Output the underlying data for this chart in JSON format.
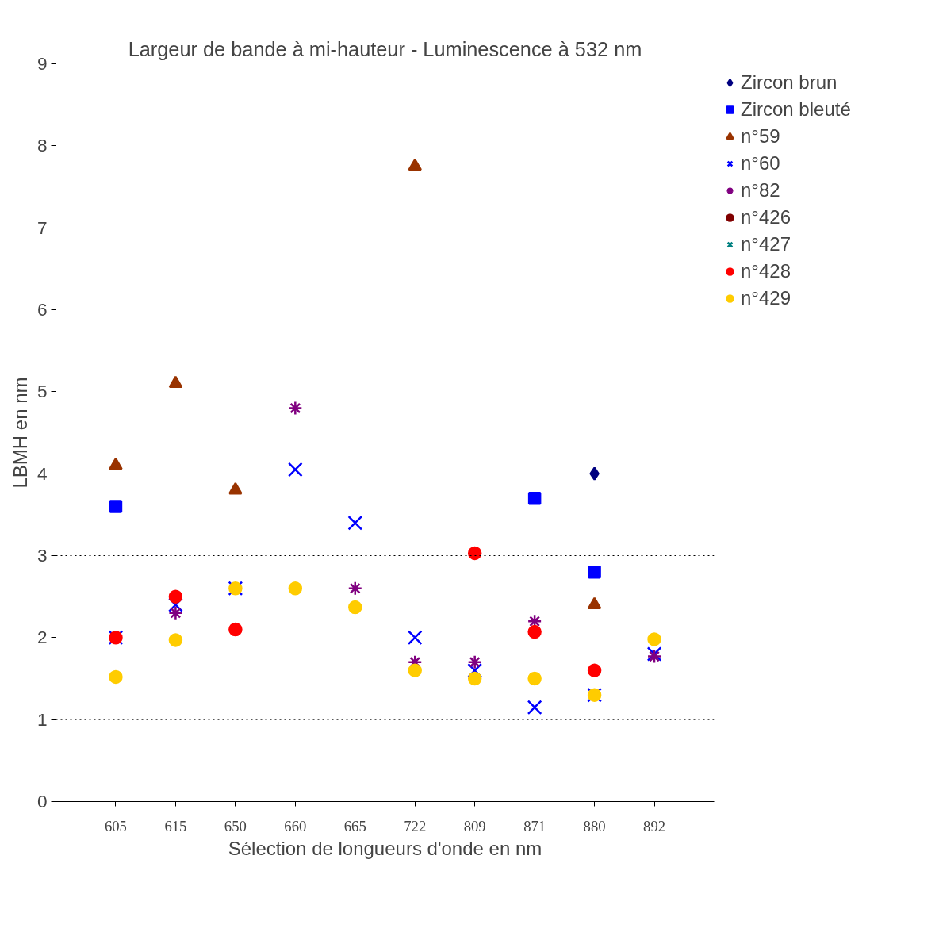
{
  "chart_data": {
    "type": "scatter",
    "title": "Largeur de bande à mi-hauteur - Luminescence à 532 nm",
    "xlabel": "Sélection de longueurs d'onde en nm",
    "ylabel": "LBMH en nm",
    "categories": [
      "605",
      "615",
      "650",
      "660",
      "665",
      "722",
      "809",
      "871",
      "880",
      "892"
    ],
    "ylim": [
      0,
      9
    ],
    "yticks": [
      0,
      1,
      2,
      3,
      4,
      5,
      6,
      7,
      8,
      9
    ],
    "grid": false,
    "legend": "right",
    "ref_lines": [
      {
        "axis": "y",
        "value": 3,
        "color": "#000000",
        "line_style": "dotted"
      },
      {
        "axis": "y",
        "value": 1,
        "color": "#000000",
        "line_style": "dotted"
      }
    ],
    "series": [
      {
        "name": "Zircon brun",
        "color": "#000080",
        "marker": "diamond",
        "values": [
          null,
          null,
          null,
          null,
          null,
          null,
          null,
          null,
          4.0,
          null
        ]
      },
      {
        "name": "Zircon bleuté",
        "color": "#0000ff",
        "marker": "square",
        "values": [
          3.6,
          null,
          null,
          null,
          null,
          null,
          null,
          3.7,
          2.8,
          null
        ]
      },
      {
        "name": "n°59",
        "color": "#993300",
        "marker": "triangle",
        "values": [
          4.1,
          5.1,
          3.8,
          null,
          null,
          7.75,
          null,
          null,
          2.4,
          null
        ]
      },
      {
        "name": "n°60",
        "color": "#0000ff",
        "marker": "cross",
        "values": [
          2.0,
          2.4,
          2.6,
          4.05,
          3.4,
          2.0,
          1.6,
          1.15,
          1.3,
          1.8
        ]
      },
      {
        "name": "n°82",
        "color": "#800080",
        "values": [
          null,
          2.3,
          null,
          4.8,
          2.6,
          1.7,
          1.7,
          2.2,
          null,
          1.77
        ]
      },
      {
        "name": "n°426",
        "color": "#800000",
        "marker": "circle",
        "values": [
          null,
          null,
          null,
          null,
          null,
          null,
          null,
          null,
          null,
          null
        ]
      },
      {
        "name": "n°427",
        "color": "#008080",
        "marker": "cross",
        "values": [
          null,
          null,
          null,
          null,
          null,
          null,
          null,
          null,
          null,
          null
        ]
      },
      {
        "name": "n°428",
        "color": "#ff0000",
        "marker": "circle",
        "values": [
          2.0,
          2.5,
          2.1,
          null,
          null,
          null,
          3.03,
          2.07,
          1.6,
          null
        ]
      },
      {
        "name": "n°429",
        "color": "#ffcc00",
        "marker": "circle",
        "values": [
          1.52,
          1.97,
          2.6,
          2.6,
          2.37,
          1.6,
          1.5,
          1.5,
          1.3,
          1.98
        ]
      }
    ]
  }
}
